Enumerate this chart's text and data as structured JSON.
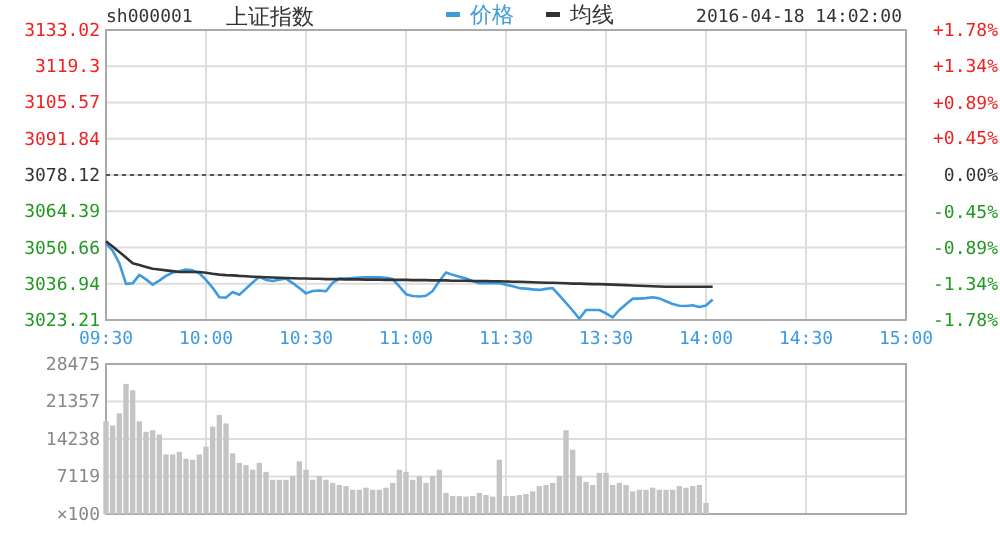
{
  "chart_data": [
    {
      "type": "line",
      "subtitle": "sh000001",
      "title": "上证指数",
      "annotations": [
        "2016-04-18 14:02:00"
      ],
      "legend": "top",
      "grid": true,
      "marker": "none",
      "categories": [
        "09:30",
        null,
        null,
        null,
        null,
        null,
        null,
        null,
        null,
        null,
        null,
        null,
        null,
        null,
        null,
        "10:00",
        null,
        null,
        null,
        null,
        null,
        null,
        null,
        null,
        null,
        null,
        null,
        null,
        null,
        null,
        "10:30",
        null,
        null,
        null,
        null,
        null,
        null,
        null,
        null,
        null,
        null,
        null,
        null,
        null,
        null,
        "11:00",
        null,
        null,
        null,
        null,
        null,
        null,
        null,
        null,
        null,
        null,
        null,
        null,
        null,
        null,
        "11:30",
        null,
        null,
        null,
        null,
        null,
        null,
        null,
        null,
        null,
        null,
        null,
        null,
        null,
        null,
        "13:30",
        null,
        null,
        null,
        null,
        null,
        null,
        null,
        null,
        null,
        null,
        null,
        null,
        null,
        null,
        "14:00",
        null,
        null,
        null,
        null,
        null,
        null,
        null,
        null,
        null,
        null,
        null,
        null,
        null,
        null,
        "14:30",
        null,
        null,
        null,
        null,
        null,
        null,
        null,
        null,
        null,
        null,
        null,
        null,
        null,
        null,
        "15:00"
      ],
      "ylim": [
        3023.21,
        3133.02
      ],
      "yticks": [
        3023.21,
        3036.94,
        3050.66,
        3064.39,
        3078.12,
        3091.84,
        3105.57,
        3119.3,
        3133.02
      ],
      "y2lim": [
        -1.78,
        1.78
      ],
      "y2ticks": [
        {
          "value": -1.78,
          "label": "-1.78%"
        },
        {
          "value": -1.34,
          "label": "-1.34%"
        },
        {
          "value": -0.89,
          "label": "-0.89%"
        },
        {
          "value": -0.45,
          "label": "-0.45%"
        },
        {
          "value": 0,
          "label": "0.00%"
        },
        {
          "value": 0.45,
          "label": "+0.45%"
        },
        {
          "value": 0.89,
          "label": "+0.89%"
        },
        {
          "value": 1.34,
          "label": "+1.34%"
        },
        {
          "value": 1.78,
          "label": "+1.78%"
        }
      ],
      "ref_lines": [
        {
          "axis": "y",
          "value": 3078.12,
          "color": "#555555",
          "line_style": "dotted"
        }
      ],
      "series": [
        {
          "name": "价格",
          "color": "#3d9be0",
          "values": [
            3052.2,
            3049.5,
            3044.7,
            3036.9,
            3037.1,
            3040.3,
            3038.6,
            3036.6,
            3038.1,
            3039.9,
            3041.2,
            3041.7,
            3042.3,
            3042.0,
            3040.9,
            3038.4,
            3035.4,
            3031.8,
            3031.7,
            3033.8,
            3032.8,
            3035.1,
            3037.4,
            3039.6,
            3038.4,
            3038.0,
            3038.5,
            3038.9,
            3037.2,
            3035.3,
            3033.3,
            3034.2,
            3034.4,
            3034.1,
            3037.3,
            3038.9,
            3038.9,
            3039.1,
            3039.3,
            3039.4,
            3039.4,
            3039.4,
            3039.2,
            3038.7,
            3035.9,
            3033.0,
            3032.3,
            3032.1,
            3032.4,
            3034.2,
            3038.0,
            3041.2,
            3040.3,
            3039.6,
            3038.9,
            3038.0,
            3037.1,
            3037.1,
            3037.1,
            3037.1,
            3036.6,
            3036.0,
            3035.3,
            3035.1,
            3034.8,
            3034.6,
            3035.0,
            3035.3,
            3032.5,
            3029.7,
            3026.8,
            3023.7,
            3027.0,
            3027.0,
            3027.0,
            3025.7,
            3024.2,
            3027.0,
            3029.2,
            3031.3,
            3031.3,
            3031.5,
            3031.8,
            3031.4,
            3030.3,
            3029.3,
            3028.6,
            3028.5,
            3028.8,
            3028.1,
            3028.7,
            3031.0,
            null,
            null,
            null,
            null,
            null,
            null,
            null,
            null,
            null,
            null,
            null,
            null,
            null,
            null,
            null,
            null,
            null,
            null,
            null,
            null,
            null,
            null,
            null,
            null,
            null,
            null,
            null,
            null,
            null
          ]
        },
        {
          "name": "均线",
          "color": "#333333",
          "values": [
            3053.0,
            3051.0,
            3049.0,
            3046.9,
            3044.7,
            3044.0,
            3043.3,
            3042.6,
            3042.3,
            3042.0,
            3041.7,
            3041.4,
            3041.4,
            3041.4,
            3041.4,
            3041.1,
            3040.7,
            3040.4,
            3040.2,
            3040.1,
            3039.9,
            3039.8,
            3039.6,
            3039.5,
            3039.4,
            3039.3,
            3039.2,
            3039.1,
            3039.0,
            3038.9,
            3038.9,
            3038.8,
            3038.8,
            3038.7,
            3038.7,
            3038.7,
            3038.6,
            3038.6,
            3038.6,
            3038.5,
            3038.5,
            3038.5,
            3038.4,
            3038.4,
            3038.4,
            3038.4,
            3038.3,
            3038.3,
            3038.3,
            3038.2,
            3038.2,
            3038.2,
            3038.1,
            3038.1,
            3038.1,
            3038.0,
            3038.0,
            3038.0,
            3037.9,
            3037.9,
            3037.8,
            3037.7,
            3037.7,
            3037.6,
            3037.5,
            3037.4,
            3037.3,
            3037.3,
            3037.2,
            3037.1,
            3037.0,
            3037.0,
            3036.9,
            3036.8,
            3036.8,
            3036.7,
            3036.6,
            3036.5,
            3036.4,
            3036.3,
            3036.2,
            3036.1,
            3036.0,
            3035.9,
            3035.8,
            3035.8,
            3035.8,
            3035.8,
            3035.8,
            3035.8,
            3035.8,
            3035.8,
            null,
            null,
            null,
            null,
            null,
            null,
            null,
            null,
            null,
            null,
            null,
            null,
            null,
            null,
            null,
            null,
            null,
            null,
            null,
            null,
            null,
            null,
            null,
            null,
            null,
            null,
            null,
            null,
            null
          ]
        }
      ]
    },
    {
      "type": "bar",
      "grid": true,
      "tick_labels": "y",
      "color": "#c4c4c4",
      "ylabel": "×100",
      "categories": [
        null,
        null,
        null,
        null,
        null,
        null,
        null,
        null,
        null,
        null,
        null,
        null,
        null,
        null,
        null,
        null,
        null,
        null,
        null,
        null,
        null,
        null,
        null,
        null,
        null,
        null,
        null,
        null,
        null,
        null,
        null,
        null,
        null,
        null,
        null,
        null,
        null,
        null,
        null,
        null,
        null,
        null,
        null,
        null,
        null,
        null,
        null,
        null,
        null,
        null,
        null,
        null,
        null,
        null,
        null,
        null,
        null,
        null,
        null,
        null,
        null,
        null,
        null,
        null,
        null,
        null,
        null,
        null,
        null,
        null,
        null,
        null,
        null,
        null,
        null,
        null,
        null,
        null,
        null,
        null,
        null,
        null,
        null,
        null,
        null,
        null,
        null,
        null,
        null,
        null,
        null,
        null,
        null,
        null,
        null,
        null,
        null,
        null,
        null,
        null,
        null,
        null,
        null,
        null,
        null,
        null,
        null,
        null,
        null,
        null,
        null,
        null,
        null,
        null,
        null,
        null,
        null,
        null,
        null,
        null,
        null
      ],
      "ylim": [
        0,
        28475
      ],
      "yticks": [
        7119,
        14238,
        21357,
        28475
      ],
      "values": [
        17600,
        16800,
        19100,
        24700,
        23500,
        17600,
        15600,
        15900,
        15100,
        11300,
        11300,
        11800,
        10500,
        10300,
        11300,
        12800,
        16600,
        18800,
        17200,
        11500,
        9700,
        9300,
        8400,
        9700,
        8000,
        6500,
        6500,
        6500,
        7200,
        10000,
        8400,
        6500,
        7200,
        6500,
        5900,
        5500,
        5300,
        4600,
        4600,
        5000,
        4600,
        4600,
        5000,
        5900,
        8400,
        8000,
        6500,
        7200,
        5900,
        7200,
        8400,
        4000,
        3400,
        3400,
        3300,
        3400,
        4000,
        3600,
        3300,
        10300,
        3400,
        3400,
        3600,
        3800,
        4300,
        5300,
        5500,
        5900,
        7200,
        15900,
        12200,
        7200,
        6100,
        5500,
        7800,
        7800,
        5500,
        5900,
        5500,
        4300,
        4600,
        4600,
        5000,
        4600,
        4600,
        4600,
        5300,
        5000,
        5300,
        5500,
        2100,
        null,
        null,
        null,
        null,
        null,
        null,
        null,
        null,
        null,
        null,
        null,
        null,
        null,
        null,
        null,
        null,
        null,
        null,
        null,
        null,
        null,
        null,
        null,
        null,
        null,
        null,
        null,
        null,
        null,
        null
      ]
    }
  ]
}
